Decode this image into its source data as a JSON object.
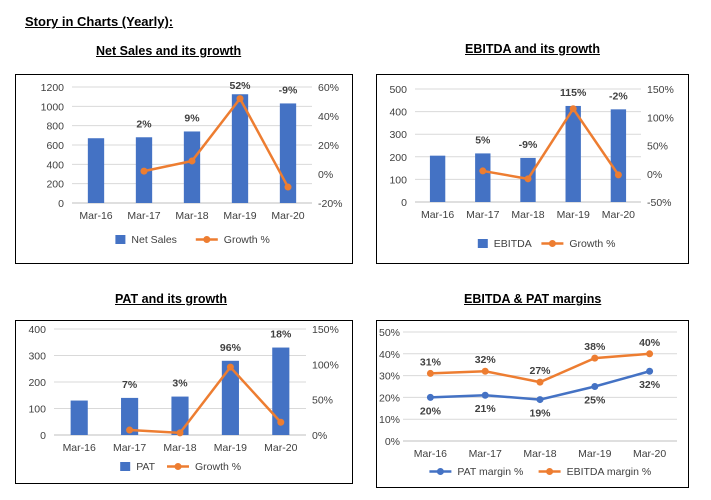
{
  "page_title": "Story in Charts (Yearly):",
  "colors": {
    "bar": "#4472c4",
    "growth": "#ed7d31",
    "pat_margin": "#4472c4",
    "ebitda_margin": "#ed7d31",
    "grid": "#d9d9d9",
    "axis_text": "#404040"
  },
  "chart_data": [
    {
      "type": "bar",
      "title": "Net Sales and its growth",
      "categories": [
        "Mar-16",
        "Mar-17",
        "Mar-18",
        "Mar-19",
        "Mar-20"
      ],
      "series": [
        {
          "name": "Net Sales",
          "kind": "bar",
          "axis": "left",
          "values": [
            670,
            680,
            740,
            1125,
            1030
          ]
        },
        {
          "name": "Growth %",
          "kind": "line",
          "axis": "right",
          "values": [
            null,
            2,
            9,
            52,
            -9
          ]
        }
      ],
      "data_labels": [
        "",
        "2%",
        "9%",
        "52%",
        "-9%"
      ],
      "ylim": [
        0,
        1200
      ],
      "yticks": [
        0,
        200,
        400,
        600,
        800,
        1000,
        1200
      ],
      "y2lim": [
        -20,
        60
      ],
      "y2ticks": [
        "-20%",
        "0%",
        "20%",
        "40%",
        "60%"
      ],
      "grid": true,
      "legend": "bottom"
    },
    {
      "type": "bar",
      "title": "EBITDA and its growth",
      "categories": [
        "Mar-16",
        "Mar-17",
        "Mar-18",
        "Mar-19",
        "Mar-20"
      ],
      "series": [
        {
          "name": "EBITDA",
          "kind": "bar",
          "axis": "left",
          "values": [
            205,
            215,
            195,
            425,
            410
          ]
        },
        {
          "name": "Growth %",
          "kind": "line",
          "axis": "right",
          "values": [
            null,
            5,
            -9,
            115,
            -2
          ]
        }
      ],
      "data_labels": [
        "",
        "5%",
        "-9%",
        "115%",
        "-2%"
      ],
      "ylim": [
        0,
        500
      ],
      "yticks": [
        0,
        100,
        200,
        300,
        400,
        500
      ],
      "y2lim": [
        -50,
        150
      ],
      "y2ticks": [
        "-50%",
        "0%",
        "50%",
        "100%",
        "150%"
      ],
      "grid": true,
      "legend": "bottom"
    },
    {
      "type": "bar",
      "title": "PAT and its growth",
      "categories": [
        "Mar-16",
        "Mar-17",
        "Mar-18",
        "Mar-19",
        "Mar-20"
      ],
      "series": [
        {
          "name": "PAT",
          "kind": "bar",
          "axis": "left",
          "values": [
            130,
            140,
            145,
            280,
            330
          ]
        },
        {
          "name": "Growth %",
          "kind": "line",
          "axis": "right",
          "values": [
            null,
            7,
            3,
            96,
            18
          ]
        }
      ],
      "data_labels": [
        "",
        "7%",
        "3%",
        "96%",
        "18%"
      ],
      "ylim": [
        0,
        400
      ],
      "yticks": [
        0,
        100,
        200,
        300,
        400
      ],
      "y2lim": [
        0,
        150
      ],
      "y2ticks": [
        "0%",
        "50%",
        "100%",
        "150%"
      ],
      "grid": true,
      "legend": "bottom"
    },
    {
      "type": "line",
      "title": "EBITDA & PAT margins",
      "categories": [
        "Mar-16",
        "Mar-17",
        "Mar-18",
        "Mar-19",
        "Mar-20"
      ],
      "series": [
        {
          "name": "PAT margin %",
          "values": [
            20,
            21,
            19,
            25,
            32
          ],
          "labels": [
            "20%",
            "21%",
            "19%",
            "25%",
            "32%"
          ],
          "label_pos": "below"
        },
        {
          "name": "EBITDA margin %",
          "values": [
            31,
            32,
            27,
            38,
            40
          ],
          "labels": [
            "31%",
            "32%",
            "27%",
            "38%",
            "40%"
          ],
          "label_pos": "above"
        }
      ],
      "ylim": [
        0,
        50
      ],
      "yticks": [
        "0%",
        "10%",
        "20%",
        "30%",
        "40%",
        "50%"
      ],
      "grid": true,
      "legend": "bottom"
    }
  ]
}
